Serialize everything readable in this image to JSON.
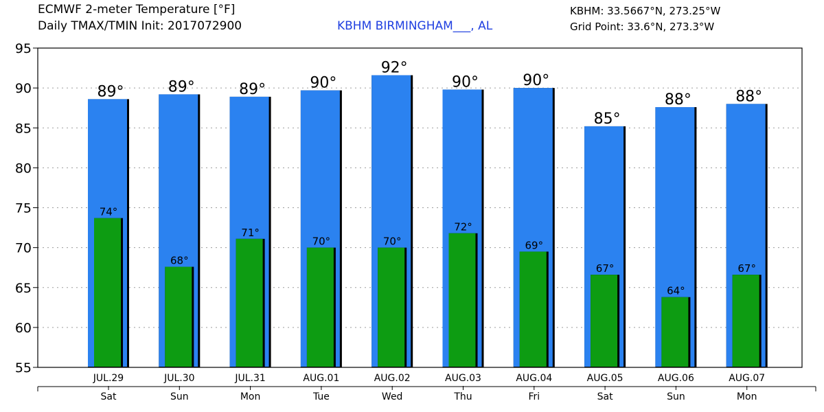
{
  "header": {
    "title_line1": "ECMWF 2-meter Temperature [°F]",
    "title_line2": "Daily TMAX/TMIN Init: 2017072900",
    "station": "KBHM BIRMINGHAM___, AL",
    "station_coords": "KBHM: 33.5667°N, 273.25°W",
    "grid_point": "Grid Point: 33.6°N, 273.3°W"
  },
  "colors": {
    "tmax": "#2b82f0",
    "tmin": "#0d9c12",
    "station_text": "#1f3fe0"
  },
  "chart_data": {
    "type": "bar",
    "categories": [
      "JUL.29",
      "JUL.30",
      "JUL.31",
      "AUG.01",
      "AUG.02",
      "AUG.03",
      "AUG.04",
      "AUG.05",
      "AUG.06",
      "AUG.07"
    ],
    "day_labels": [
      "Sat",
      "Sun",
      "Mon",
      "Tue",
      "Wed",
      "Thu",
      "Fri",
      "Sat",
      "Sun",
      "Mon"
    ],
    "series": [
      {
        "values": [
          88.6,
          89.2,
          88.9,
          89.7,
          91.6,
          89.8,
          90.0,
          85.2,
          87.6,
          88.0
        ],
        "labels": [
          "89°",
          "89°",
          "89°",
          "90°",
          "92°",
          "90°",
          "90°",
          "85°",
          "88°",
          "88°"
        ]
      },
      {
        "values": [
          73.7,
          67.6,
          71.1,
          70.0,
          70.0,
          71.8,
          69.5,
          66.6,
          63.8,
          66.6
        ],
        "labels": [
          "74°",
          "68°",
          "71°",
          "70°",
          "70°",
          "72°",
          "69°",
          "67°",
          "64°",
          "67°"
        ]
      }
    ],
    "ylim": [
      55,
      95
    ],
    "yticks": [
      "55",
      "60",
      "65",
      "70",
      "75",
      "80",
      "85",
      "90",
      "95"
    ],
    "grid": true
  }
}
